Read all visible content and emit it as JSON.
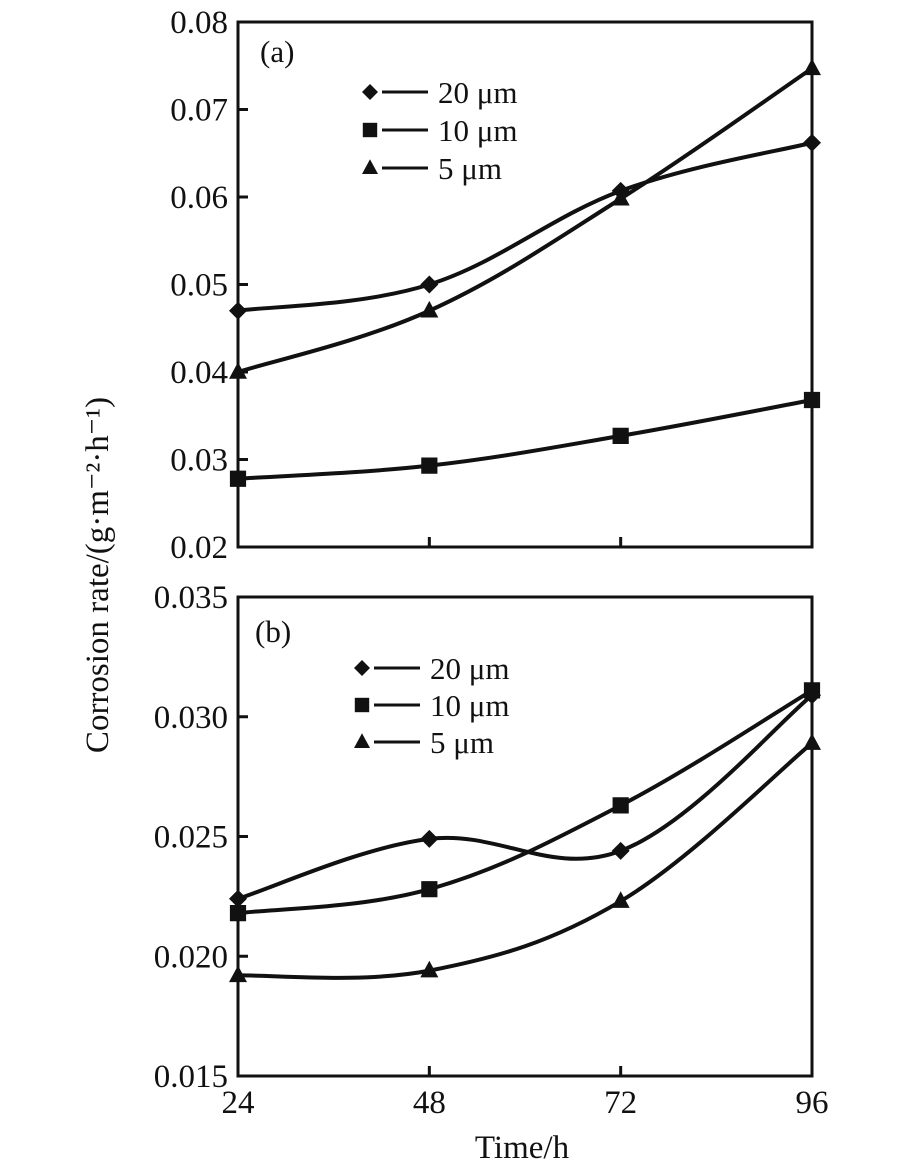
{
  "ylabel": "Corrosion rate/(g·m⁻²·h⁻¹)",
  "xlabel": "Time/h",
  "chart_data": [
    {
      "type": "line",
      "panel_label": "(a)",
      "x": [
        24,
        48,
        72,
        96
      ],
      "xticks": [
        "24",
        "48",
        "72",
        "96"
      ],
      "ylim": [
        0.02,
        0.08
      ],
      "yticks": [
        "0.02",
        "0.03",
        "0.04",
        "0.05",
        "0.06",
        "0.07",
        "0.08"
      ],
      "legend_position": "top-left",
      "grid": false,
      "series": [
        {
          "name": "20 μm",
          "marker": "diamond",
          "values": [
            0.047,
            0.05,
            0.0607,
            0.0662
          ]
        },
        {
          "name": "10 μm",
          "marker": "square",
          "values": [
            0.0278,
            0.0293,
            0.0327,
            0.0368
          ]
        },
        {
          "name": "5 μm",
          "marker": "triangle",
          "values": [
            0.04,
            0.047,
            0.0598,
            0.0747
          ]
        }
      ]
    },
    {
      "type": "line",
      "panel_label": "(b)",
      "x": [
        24,
        48,
        72,
        96
      ],
      "xticks": [
        "24",
        "48",
        "72",
        "96"
      ],
      "ylim": [
        0.015,
        0.035
      ],
      "yticks": [
        "0.015",
        "0.020",
        "0.025",
        "0.030",
        "0.035"
      ],
      "legend_position": "top-left",
      "grid": false,
      "series": [
        {
          "name": "20 μm",
          "marker": "diamond",
          "values": [
            0.0224,
            0.0249,
            0.0244,
            0.0309
          ]
        },
        {
          "name": "10 μm",
          "marker": "square",
          "values": [
            0.0218,
            0.0228,
            0.0263,
            0.0311
          ]
        },
        {
          "name": "5 μm",
          "marker": "triangle",
          "values": [
            0.0192,
            0.0194,
            0.0223,
            0.0289
          ]
        }
      ]
    }
  ]
}
